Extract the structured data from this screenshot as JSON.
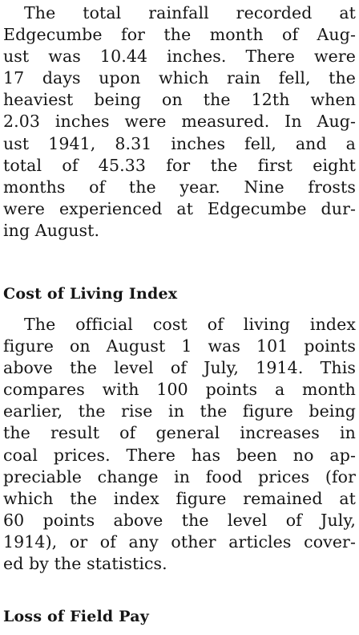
{
  "article": {
    "paragraph_1": {
      "lines": [
        "The total rainfall recorded at",
        "Edgecumbe for the month of Aug-",
        "ust was 10.44 inches. There were",
        "17 days upon which rain fell, the",
        "heaviest being on the 12th when",
        "2.03 inches were measured. In Aug-",
        "ust 1941, 8.31 inches fell, and a",
        "total of 45.33 for the first eight",
        "months of the year. Nine frosts",
        "were experienced at Edgecumbe dur-",
        "ing August."
      ]
    },
    "heading_1": "Cost of Living Index",
    "paragraph_2": {
      "lines": [
        "The official cost of living index",
        "figure on August 1 was 101 points",
        "above the level of July, 1914. This",
        "compares with 100 points a month",
        "earlier, the rise in the figure being",
        "the result of general increases in",
        "coal prices. There has been no ap-",
        "preciable change in food prices (for",
        "which the index figure remained at",
        "60 points above the level of July,",
        "1914), or of any other articles cover-",
        "ed by the statistics."
      ]
    },
    "heading_2": "Loss of Field Pay"
  }
}
